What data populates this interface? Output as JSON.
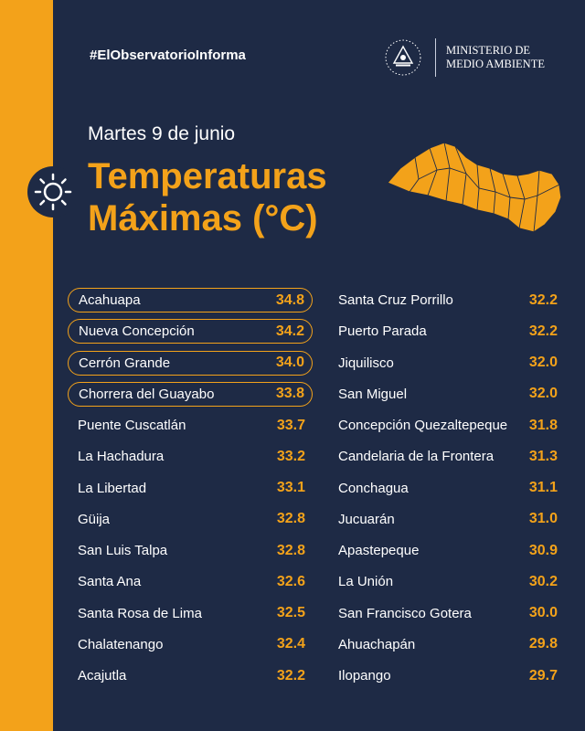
{
  "colors": {
    "accent": "#f3a21a",
    "panel": "#1e2a45",
    "text": "#ffffff"
  },
  "header": {
    "hashtag": "#ElObservatorioInforma",
    "ministry_line1": "MINISTERIO DE",
    "ministry_line2": "MEDIO AMBIENTE",
    "seal_icon": "el-salvador-seal-icon"
  },
  "date": "Martes 9 de junio",
  "title_line1": "Temperaturas",
  "title_line2": "Máximas (°C)",
  "map_icon": "el-salvador-map-icon",
  "left_list": [
    {
      "name": "Acahuapa",
      "value": "34.8",
      "highlight": true
    },
    {
      "name": "Nueva Concepción",
      "value": "34.2",
      "highlight": true
    },
    {
      "name": "Cerrón Grande",
      "value": "34.0",
      "highlight": true
    },
    {
      "name": "Chorrera del Guayabo",
      "value": "33.8",
      "highlight": true
    },
    {
      "name": "Puente Cuscatlán",
      "value": "33.7",
      "highlight": false
    },
    {
      "name": "La Hachadura",
      "value": "33.2",
      "highlight": false
    },
    {
      "name": "La Libertad",
      "value": "33.1",
      "highlight": false
    },
    {
      "name": "Güija",
      "value": "32.8",
      "highlight": false
    },
    {
      "name": "San Luis Talpa",
      "value": "32.8",
      "highlight": false
    },
    {
      "name": "Santa Ana",
      "value": "32.6",
      "highlight": false
    },
    {
      "name": "Santa Rosa de Lima",
      "value": "32.5",
      "highlight": false
    },
    {
      "name": "Chalatenango",
      "value": "32.4",
      "highlight": false
    },
    {
      "name": "Acajutla",
      "value": "32.2",
      "highlight": false
    }
  ],
  "right_list": [
    {
      "name": "Santa Cruz Porrillo",
      "value": "32.2"
    },
    {
      "name": "Puerto Parada",
      "value": "32.2"
    },
    {
      "name": "Jiquilisco",
      "value": "32.0"
    },
    {
      "name": "San Miguel",
      "value": "32.0"
    },
    {
      "name": "Concepción Quezaltepeque",
      "value": "31.8"
    },
    {
      "name": "Candelaria de la Frontera",
      "value": "31.3"
    },
    {
      "name": "Conchagua",
      "value": "31.1"
    },
    {
      "name": "Jucuarán",
      "value": "31.0"
    },
    {
      "name": "Apastepeque",
      "value": "30.9"
    },
    {
      "name": "La Unión",
      "value": "30.2"
    },
    {
      "name": "San Francisco Gotera",
      "value": "30.0"
    },
    {
      "name": "Ahuachapán",
      "value": "29.8"
    },
    {
      "name": "Ilopango",
      "value": "29.7"
    }
  ]
}
